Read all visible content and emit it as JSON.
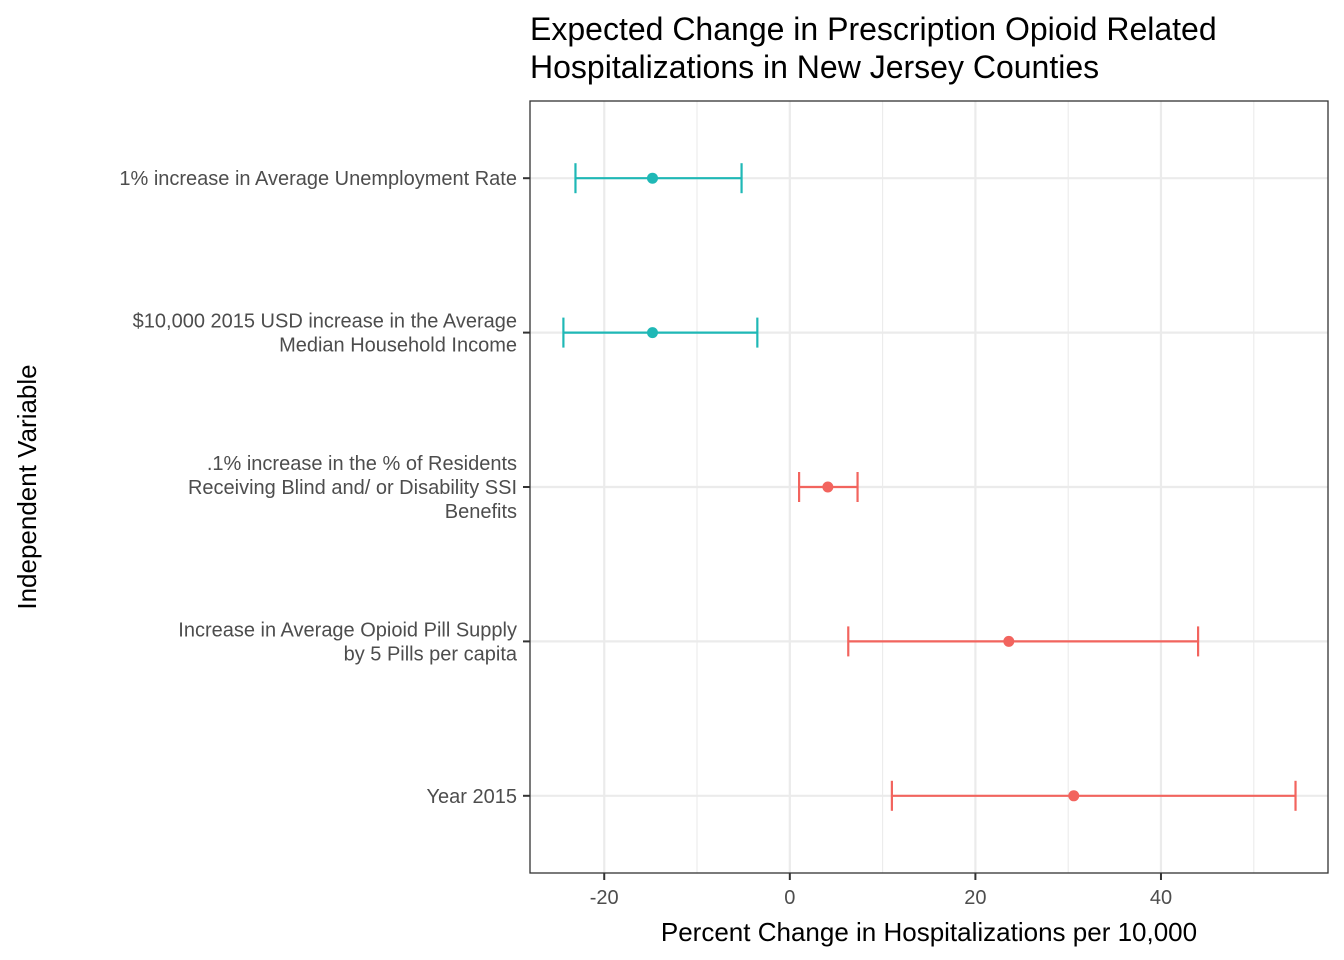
{
  "chart_data": {
    "type": "errorbar",
    "title": [
      "Expected Change in Prescription Opioid Related",
      "Hospitalizations in New Jersey Counties"
    ],
    "xlabel": "Percent Change in Hospitalizations per 10,000",
    "ylabel": "Independent Variable",
    "xlim": [
      -28,
      58
    ],
    "x_ticks": [
      -20,
      0,
      20,
      40
    ],
    "x_tick_labels": [
      "-20",
      "0",
      "20",
      "40"
    ],
    "grid": true,
    "categories": [
      [
        "1% increase in Average Unemployment Rate"
      ],
      [
        "$10,000 2015 USD increase in the Average",
        "Median Household Income"
      ],
      [
        ".1% increase in the % of Residents",
        "Receiving Blind and/ or Disability SSI",
        "Benefits"
      ],
      [
        "Increase in Average Opioid Pill Supply",
        "by 5 Pills per capita"
      ],
      [
        "Year 2015"
      ]
    ],
    "estimates": [
      -14.8,
      -14.8,
      4.1,
      23.6,
      30.6
    ],
    "lower": [
      -23.1,
      -24.4,
      1.0,
      6.3,
      11.0
    ],
    "upper": [
      -5.2,
      -3.5,
      7.3,
      44.0,
      54.5
    ],
    "colors": {
      "negative": "#1fb8b6",
      "positive": "#f2645e",
      "grid": "#ebebeb",
      "panel_border": "#333333",
      "tick": "#333333"
    }
  }
}
